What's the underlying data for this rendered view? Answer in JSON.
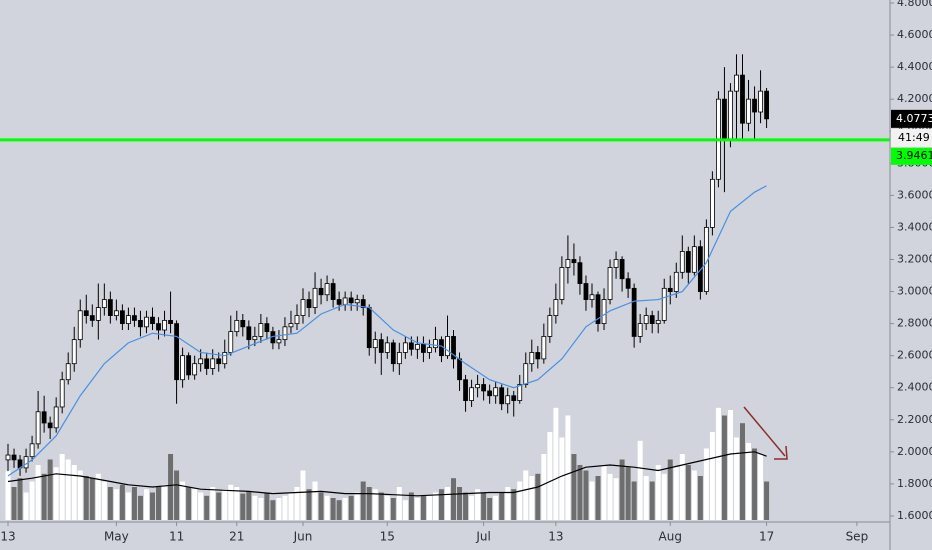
{
  "chart_data": {
    "type": "candlestick",
    "up_color": "#ffffff",
    "down_color": "#000000",
    "volume_up_color": "#ffffff",
    "volume_down_color": "#6e6e6e",
    "open": [
      1.95,
      1.98,
      1.95,
      1.9,
      1.97,
      2.05,
      2.25,
      2.18,
      2.15,
      2.28,
      2.45,
      2.55,
      2.7,
      2.88,
      2.85,
      2.82,
      2.9,
      2.95,
      2.85,
      2.88,
      2.8,
      2.85,
      2.82,
      2.78,
      2.84,
      2.8,
      2.76,
      2.82,
      2.8,
      2.45,
      2.6,
      2.48,
      2.55,
      2.58,
      2.52,
      2.58,
      2.55,
      2.62,
      2.75,
      2.82,
      2.78,
      2.7,
      2.72,
      2.8,
      2.75,
      2.68,
      2.7,
      2.78,
      2.8,
      2.85,
      2.95,
      2.9,
      3.02,
      2.98,
      3.05,
      2.95,
      2.92,
      2.96,
      2.93,
      2.95,
      2.9,
      2.65,
      2.7,
      2.62,
      2.68,
      2.55,
      2.62,
      2.68,
      2.64,
      2.67,
      2.62,
      2.65,
      2.7,
      2.6,
      2.72,
      2.58,
      2.45,
      2.32,
      2.4,
      2.42,
      2.38,
      2.35,
      2.4,
      2.3,
      2.35,
      2.32,
      2.42,
      2.55,
      2.62,
      2.58,
      2.72,
      2.85,
      2.95,
      3.15,
      3.2,
      3.18,
      3.05,
      2.95,
      2.98,
      2.8,
      2.95,
      3.15,
      3.2,
      3.08,
      3.02,
      2.72,
      2.8,
      2.85,
      2.8,
      2.82,
      3.02,
      3.0,
      3.12,
      3.25,
      3.12,
      3.28,
      3.0,
      3.4,
      3.7,
      4.2,
      3.95,
      4.25,
      4.35,
      4.05,
      4.2,
      4.12,
      4.25
    ],
    "high": [
      2.05,
      2.02,
      1.98,
      2.02,
      2.1,
      2.38,
      2.35,
      2.22,
      2.34,
      2.5,
      2.62,
      2.78,
      2.95,
      2.98,
      2.92,
      3.05,
      3.05,
      3.0,
      2.95,
      2.92,
      2.9,
      2.9,
      2.88,
      2.88,
      2.9,
      2.84,
      2.88,
      3.0,
      2.82,
      2.65,
      2.62,
      2.6,
      2.64,
      2.62,
      2.64,
      2.62,
      2.7,
      2.85,
      2.88,
      2.86,
      2.82,
      2.78,
      2.86,
      2.84,
      2.78,
      2.76,
      2.84,
      2.88,
      2.92,
      3.02,
      3.0,
      3.12,
      3.08,
      3.1,
      3.08,
      3.0,
      3.0,
      3.0,
      2.98,
      2.98,
      2.92,
      2.75,
      2.74,
      2.72,
      2.7,
      2.68,
      2.72,
      2.72,
      2.72,
      2.72,
      2.7,
      2.78,
      2.72,
      2.85,
      2.76,
      2.62,
      2.48,
      2.45,
      2.48,
      2.46,
      2.42,
      2.44,
      2.42,
      2.4,
      2.38,
      2.48,
      2.62,
      2.7,
      2.66,
      2.8,
      2.9,
      3.05,
      3.22,
      3.35,
      3.3,
      3.22,
      3.1,
      3.05,
      3.0,
      3.02,
      3.2,
      3.25,
      3.22,
      3.12,
      3.05,
      2.86,
      2.9,
      2.88,
      2.88,
      3.08,
      3.1,
      3.18,
      3.35,
      3.28,
      3.35,
      3.32,
      3.45,
      3.75,
      4.25,
      4.4,
      4.3,
      4.48,
      4.48,
      4.32,
      4.28,
      4.38,
      4.27
    ],
    "low": [
      1.88,
      1.9,
      1.85,
      1.87,
      1.94,
      2.02,
      2.12,
      2.08,
      2.12,
      2.24,
      2.42,
      2.5,
      2.65,
      2.8,
      2.78,
      2.7,
      2.85,
      2.8,
      2.82,
      2.76,
      2.76,
      2.78,
      2.72,
      2.74,
      2.76,
      2.7,
      2.72,
      2.74,
      2.3,
      2.4,
      2.45,
      2.45,
      2.5,
      2.48,
      2.48,
      2.5,
      2.52,
      2.6,
      2.72,
      2.72,
      2.64,
      2.66,
      2.68,
      2.7,
      2.64,
      2.64,
      2.66,
      2.74,
      2.76,
      2.8,
      2.84,
      2.86,
      2.92,
      2.94,
      2.9,
      2.88,
      2.88,
      2.88,
      2.88,
      2.85,
      2.6,
      2.55,
      2.48,
      2.58,
      2.5,
      2.48,
      2.58,
      2.6,
      2.58,
      2.56,
      2.58,
      2.62,
      2.56,
      2.58,
      2.52,
      2.38,
      2.25,
      2.28,
      2.34,
      2.32,
      2.3,
      2.3,
      2.26,
      2.24,
      2.22,
      2.3,
      2.4,
      2.5,
      2.52,
      2.55,
      2.68,
      2.8,
      2.92,
      3.05,
      3.1,
      2.98,
      2.88,
      2.9,
      2.75,
      2.76,
      2.92,
      3.08,
      3.0,
      2.96,
      2.65,
      2.68,
      2.76,
      2.74,
      2.74,
      2.8,
      2.92,
      2.96,
      3.08,
      3.05,
      3.1,
      2.95,
      2.98,
      3.35,
      3.65,
      3.62,
      3.9,
      3.95,
      3.95,
      4.0,
      3.95,
      4.05,
      4.02
    ],
    "close": [
      1.98,
      1.95,
      1.9,
      1.97,
      2.05,
      2.25,
      2.18,
      2.15,
      2.28,
      2.45,
      2.55,
      2.7,
      2.88,
      2.85,
      2.82,
      2.9,
      2.95,
      2.85,
      2.88,
      2.8,
      2.85,
      2.82,
      2.78,
      2.84,
      2.8,
      2.76,
      2.82,
      2.8,
      2.45,
      2.6,
      2.48,
      2.55,
      2.58,
      2.52,
      2.58,
      2.55,
      2.62,
      2.75,
      2.82,
      2.78,
      2.7,
      2.72,
      2.8,
      2.75,
      2.68,
      2.7,
      2.78,
      2.8,
      2.85,
      2.95,
      2.9,
      3.02,
      2.98,
      3.05,
      2.95,
      2.92,
      2.96,
      2.93,
      2.95,
      2.9,
      2.65,
      2.7,
      2.62,
      2.68,
      2.55,
      2.62,
      2.68,
      2.64,
      2.67,
      2.62,
      2.65,
      2.7,
      2.6,
      2.72,
      2.58,
      2.45,
      2.32,
      2.4,
      2.42,
      2.38,
      2.35,
      2.4,
      2.3,
      2.35,
      2.32,
      2.42,
      2.55,
      2.62,
      2.58,
      2.72,
      2.85,
      2.95,
      3.15,
      3.2,
      3.18,
      3.05,
      2.95,
      2.98,
      2.8,
      2.95,
      3.15,
      3.2,
      3.08,
      3.02,
      2.72,
      2.8,
      2.85,
      2.8,
      2.82,
      3.02,
      3.0,
      3.12,
      3.25,
      3.12,
      3.28,
      3.0,
      3.4,
      3.7,
      4.2,
      3.95,
      4.25,
      4.35,
      4.05,
      4.2,
      4.12,
      4.25,
      4.0773
    ],
    "volume": [
      45,
      30,
      38,
      25,
      35,
      50,
      42,
      55,
      48,
      60,
      55,
      50,
      45,
      40,
      38,
      42,
      35,
      30,
      28,
      32,
      25,
      30,
      22,
      28,
      25,
      30,
      32,
      60,
      45,
      35,
      30,
      28,
      25,
      22,
      30,
      25,
      28,
      32,
      30,
      24,
      26,
      22,
      20,
      25,
      18,
      20,
      22,
      25,
      30,
      45,
      28,
      35,
      25,
      22,
      20,
      18,
      20,
      22,
      25,
      35,
      30,
      28,
      25,
      22,
      20,
      30,
      18,
      25,
      20,
      22,
      22,
      25,
      28,
      30,
      38,
      30,
      25,
      22,
      28,
      25,
      20,
      22,
      25,
      30,
      28,
      35,
      45,
      40,
      42,
      60,
      80,
      102,
      75,
      95,
      60,
      50,
      45,
      35,
      40,
      50,
      42,
      38,
      55,
      48,
      35,
      72,
      40,
      35,
      50,
      42,
      55,
      48,
      60,
      50,
      45,
      40,
      65,
      80,
      102,
      95,
      100,
      75,
      88,
      70,
      65,
      60,
      35
    ],
    "volume_lim": [
      0,
      100
    ],
    "price_ma": {
      "color": "#4a90e2",
      "x": [
        0,
        4,
        8,
        12,
        16,
        20,
        24,
        28,
        32,
        36,
        40,
        44,
        48,
        52,
        56,
        60,
        64,
        68,
        72,
        76,
        80,
        84,
        88,
        92,
        96,
        100,
        104,
        108,
        112,
        116,
        120,
        124,
        126
      ],
      "values": [
        1.85,
        1.95,
        2.1,
        2.35,
        2.55,
        2.68,
        2.74,
        2.72,
        2.62,
        2.6,
        2.66,
        2.72,
        2.74,
        2.86,
        2.92,
        2.9,
        2.76,
        2.68,
        2.66,
        2.55,
        2.45,
        2.4,
        2.45,
        2.58,
        2.78,
        2.88,
        2.94,
        2.95,
        3.0,
        3.18,
        3.5,
        3.62,
        3.66
      ]
    },
    "volume_ma": {
      "color": "#000000",
      "x": [
        0,
        4,
        8,
        12,
        16,
        20,
        24,
        28,
        32,
        36,
        40,
        44,
        48,
        52,
        56,
        60,
        64,
        68,
        72,
        76,
        80,
        84,
        88,
        92,
        96,
        100,
        104,
        108,
        112,
        116,
        120,
        124,
        126
      ],
      "values": [
        35,
        38,
        42,
        40,
        36,
        32,
        30,
        32,
        28,
        27,
        26,
        24,
        25,
        26,
        24,
        24,
        23,
        22,
        23,
        24,
        25,
        25,
        30,
        40,
        48,
        50,
        48,
        45,
        50,
        55,
        60,
        62,
        58
      ]
    },
    "level": 3.9461,
    "level_color": "#00ff00",
    "countdown": "41:49",
    "xlim": [
      -1.33,
      146.5
    ],
    "xticks": [
      {
        "value": 0,
        "label": "13"
      },
      {
        "value": 18,
        "label": "May"
      },
      {
        "value": 28,
        "label": "11"
      },
      {
        "value": 38,
        "label": "21"
      },
      {
        "value": 49,
        "label": "Jun"
      },
      {
        "value": 63,
        "label": "15"
      },
      {
        "value": 79,
        "label": "Jul"
      },
      {
        "value": 91,
        "label": "13"
      },
      {
        "value": 110,
        "label": "Aug"
      },
      {
        "value": 126,
        "label": "17"
      },
      {
        "value": 141,
        "label": "Sep"
      }
    ],
    "ylim": [
      1.5624,
      4.8187
    ],
    "yticks": [
      {
        "value": 1.6,
        "label": "1.6000"
      },
      {
        "value": 1.8,
        "label": "1.8000"
      },
      {
        "value": 2.0,
        "label": "2.0000"
      },
      {
        "value": 2.2,
        "label": "2.2000"
      },
      {
        "value": 2.4,
        "label": "2.4000"
      },
      {
        "value": 2.6,
        "label": "2.6000"
      },
      {
        "value": 2.8,
        "label": "2.8000"
      },
      {
        "value": 3.0,
        "label": "3.0000"
      },
      {
        "value": 3.2,
        "label": "3.2000"
      },
      {
        "value": 3.4,
        "label": "3.4000"
      },
      {
        "value": 3.6,
        "label": "3.6000"
      },
      {
        "value": 3.8,
        "label": "3.8000"
      },
      {
        "value": 4.0,
        "label": "4.0000"
      },
      {
        "value": 4.2,
        "label": "4.2000"
      },
      {
        "value": 4.4,
        "label": "4.4000"
      },
      {
        "value": 4.6,
        "label": "4.6000"
      },
      {
        "value": 4.8,
        "label": "4.8000"
      }
    ]
  }
}
